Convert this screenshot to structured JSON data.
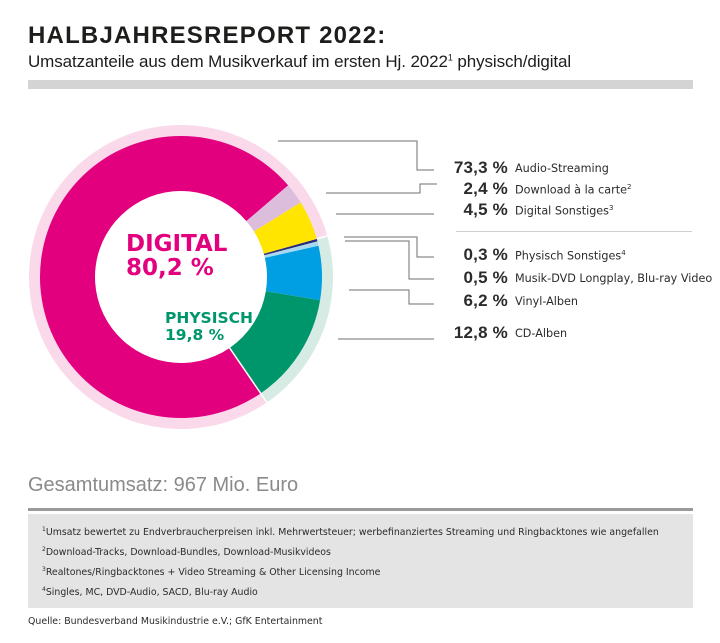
{
  "header": {
    "title": "HALBJAHRESREPORT 2022:",
    "subtitle_pre": "Umsatzanteile aus dem Musikverkauf im ersten Hj. 2022",
    "subtitle_sup": "1",
    "subtitle_post": " physisch/digital"
  },
  "center": {
    "digital_label": "DIGITAL",
    "digital_value": "80,2 %",
    "physisch_label": "PHYSISCH",
    "physisch_value": "19,8 %"
  },
  "chart_data": {
    "type": "pie",
    "variant": "donut",
    "title": "Umsatzanteile aus dem Musikverkauf im ersten Hj. 2022 physisch/digital",
    "unit": "%",
    "groups": [
      {
        "name": "Digital",
        "value": 80.2,
        "ring_color": "#f9d9ea"
      },
      {
        "name": "Physisch",
        "value": 19.8,
        "ring_color": "#d5ebe3"
      }
    ],
    "slices": [
      {
        "label": "Audio-Streaming",
        "sup": "",
        "value": 73.3,
        "display": "73,3 %",
        "group": "Digital",
        "color": "#e3007e"
      },
      {
        "label": "Download à la carte",
        "sup": "2",
        "value": 2.4,
        "display": "2,4 %",
        "group": "Digital",
        "color": "#dcbedc"
      },
      {
        "label": "Digital Sonstiges",
        "sup": "3",
        "value": 4.5,
        "display": "4,5 %",
        "group": "Digital",
        "color": "#ffe500"
      },
      {
        "label": "Physisch Sonstiges",
        "sup": "4",
        "value": 0.3,
        "display": "0,3 %",
        "group": "Physisch",
        "color": "#2a2a7a"
      },
      {
        "label": "Musik-DVD Longplay, Blu-ray Video",
        "sup": "",
        "value": 0.5,
        "display": "0,5 %",
        "group": "Physisch",
        "color": "#a8d8f0"
      },
      {
        "label": "Vinyl-Alben",
        "sup": "",
        "value": 6.2,
        "display": "6,2 %",
        "group": "Physisch",
        "color": "#009fe3"
      },
      {
        "label": "CD-Alben",
        "sup": "",
        "value": 12.8,
        "display": "12,8 %",
        "group": "Physisch",
        "color": "#00966b"
      }
    ],
    "legend_placement": "right"
  },
  "footer": {
    "total": "Gesamtumsatz: 967 Mio. Euro",
    "notes": [
      {
        "sup": "1",
        "text": "Umsatz bewertet zu Endverbraucherpreisen inkl. Mehrwertsteuer; werbefinanziertes Streaming und Ringbacktones wie angefallen"
      },
      {
        "sup": "2",
        "text": "Download-Tracks, Download-Bundles, Download-Musikvideos"
      },
      {
        "sup": "3",
        "text": "Realtones/Ringbacktones + Video Streaming & Other Licensing Income"
      },
      {
        "sup": "4",
        "text": "Singles, MC, DVD-Audio, SACD, Blu-ray Audio"
      }
    ],
    "source": "Quelle: Bundesverband Musikindustrie e.V.; GfK Entertainment"
  }
}
